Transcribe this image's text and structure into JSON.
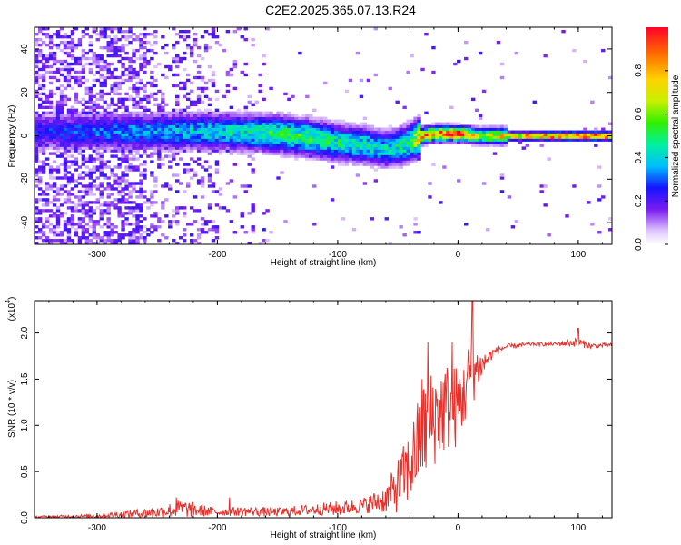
{
  "title": "C2E2.2025.365.07.13.R24",
  "chart_data": [
    {
      "type": "heatmap",
      "title": "C2E2.2025.365.07.13.R24",
      "xlabel": "Height of straight line (km)",
      "ylabel": "Frequency (Hz)",
      "xlim": [
        -352,
        128
      ],
      "ylim": [
        -50,
        50
      ],
      "x_ticks": [
        -300,
        -200,
        -100,
        0,
        100
      ],
      "x_tick_labels": [
        "-300",
        "-200",
        "-100",
        "0",
        "100"
      ],
      "y_ticks": [
        -40,
        -20,
        0,
        20,
        40
      ],
      "y_tick_labels": [
        "-40",
        "-20",
        "0",
        "20",
        "40"
      ],
      "colorbar": {
        "label": "Normalized spectral amplitude",
        "range": [
          0,
          1
        ],
        "ticks": [
          0.0,
          0.2,
          0.4,
          0.6,
          0.8
        ],
        "tick_labels": [
          "0.0",
          "0.2",
          "0.4",
          "0.6",
          "0.8"
        ]
      },
      "ridge": {
        "description_points_x": [
          -340,
          -300,
          -250,
          -200,
          -150,
          -120,
          -100,
          -80,
          -60,
          -50,
          -40,
          -30,
          -20,
          0,
          20,
          60,
          128
        ],
        "center_freq": [
          2,
          2,
          2,
          2,
          1,
          -1,
          -3,
          -4,
          -6,
          -5,
          -3,
          0,
          1,
          1,
          0,
          0,
          0
        ],
        "peak_amplitude": [
          0.25,
          0.3,
          0.35,
          0.4,
          0.5,
          0.5,
          0.45,
          0.45,
          0.4,
          0.45,
          0.5,
          0.8,
          0.9,
          0.9,
          0.6,
          0.9,
          0.95
        ]
      }
    },
    {
      "type": "line",
      "xlabel": "Height of straight line (km)",
      "ylabel": "SNR (10 * v/v)",
      "y_scale_label": "(x10",
      "y_scale_exponent": "4",
      "xlim": [
        -352,
        128
      ],
      "ylim": [
        0,
        2.35
      ],
      "x_ticks": [
        -300,
        -200,
        -100,
        0,
        100
      ],
      "x_tick_labels": [
        "-300",
        "-200",
        "-100",
        "0",
        "100"
      ],
      "y_ticks": [
        0.0,
        0.5,
        1.0,
        1.5,
        2.0
      ],
      "y_tick_labels": [
        "0.0",
        "0.5",
        "1.0",
        "1.5",
        "2.0"
      ],
      "series": [
        {
          "name": "SNR",
          "color": "#e8302a",
          "x": [
            -352,
            -300,
            -250,
            -230,
            -200,
            -180,
            -150,
            -120,
            -100,
            -80,
            -60,
            -50,
            -40,
            -30,
            -20,
            -10,
            0,
            10,
            20,
            30,
            40,
            60,
            80,
            100,
            110,
            128
          ],
          "y": [
            0.01,
            0.02,
            0.06,
            0.1,
            0.06,
            0.07,
            0.06,
            0.09,
            0.1,
            0.13,
            0.2,
            0.35,
            0.55,
            0.9,
            1.1,
            1.2,
            1.2,
            1.55,
            1.65,
            1.8,
            1.85,
            1.88,
            1.88,
            1.9,
            1.86,
            1.87
          ],
          "noise": [
            0.01,
            0.02,
            0.06,
            0.1,
            0.04,
            0.05,
            0.05,
            0.06,
            0.08,
            0.08,
            0.15,
            0.3,
            0.4,
            0.55,
            0.55,
            0.5,
            0.45,
            0.4,
            0.15,
            0.04,
            0.03,
            0.02,
            0.02,
            0.05,
            0.03,
            0.02
          ],
          "spikes": [
            [
              -234,
              0.22
            ],
            [
              -190,
              0.22
            ],
            [
              -30,
              1.5
            ],
            [
              -25,
              1.9
            ],
            [
              -5,
              1.9
            ],
            [
              5,
              1.6
            ],
            [
              12,
              2.35
            ],
            [
              100,
              2.05
            ]
          ]
        }
      ]
    }
  ],
  "colors": {
    "line": "#e8302a",
    "axes": "#000000",
    "background": "#ffffff"
  }
}
